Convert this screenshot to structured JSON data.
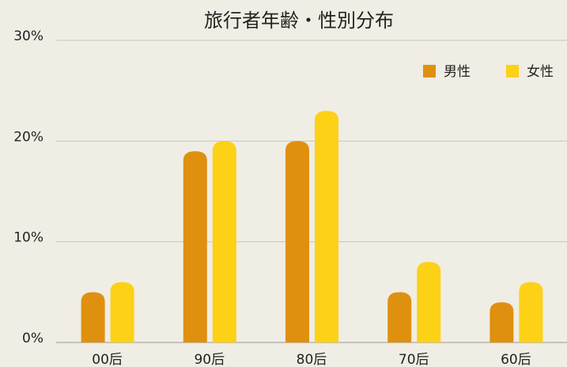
{
  "chart_data": {
    "type": "bar",
    "title": "旅行者年齢・性別分布",
    "categories": [
      "00后",
      "90后",
      "80后",
      "70后",
      "60后"
    ],
    "series": [
      {
        "name": "男性",
        "color": "#e0900f",
        "values": [
          5,
          19,
          20,
          5,
          4
        ]
      },
      {
        "name": "女性",
        "color": "#fcd116",
        "values": [
          6,
          20,
          23,
          8,
          6
        ]
      }
    ],
    "ylim": [
      0,
      30
    ],
    "yticks": [
      {
        "value": 0,
        "label": "0%"
      },
      {
        "value": 10,
        "label": "10%"
      },
      {
        "value": 20,
        "label": "20%"
      },
      {
        "value": 30,
        "label": "30%"
      }
    ],
    "grid": true,
    "legend": "top-right"
  }
}
